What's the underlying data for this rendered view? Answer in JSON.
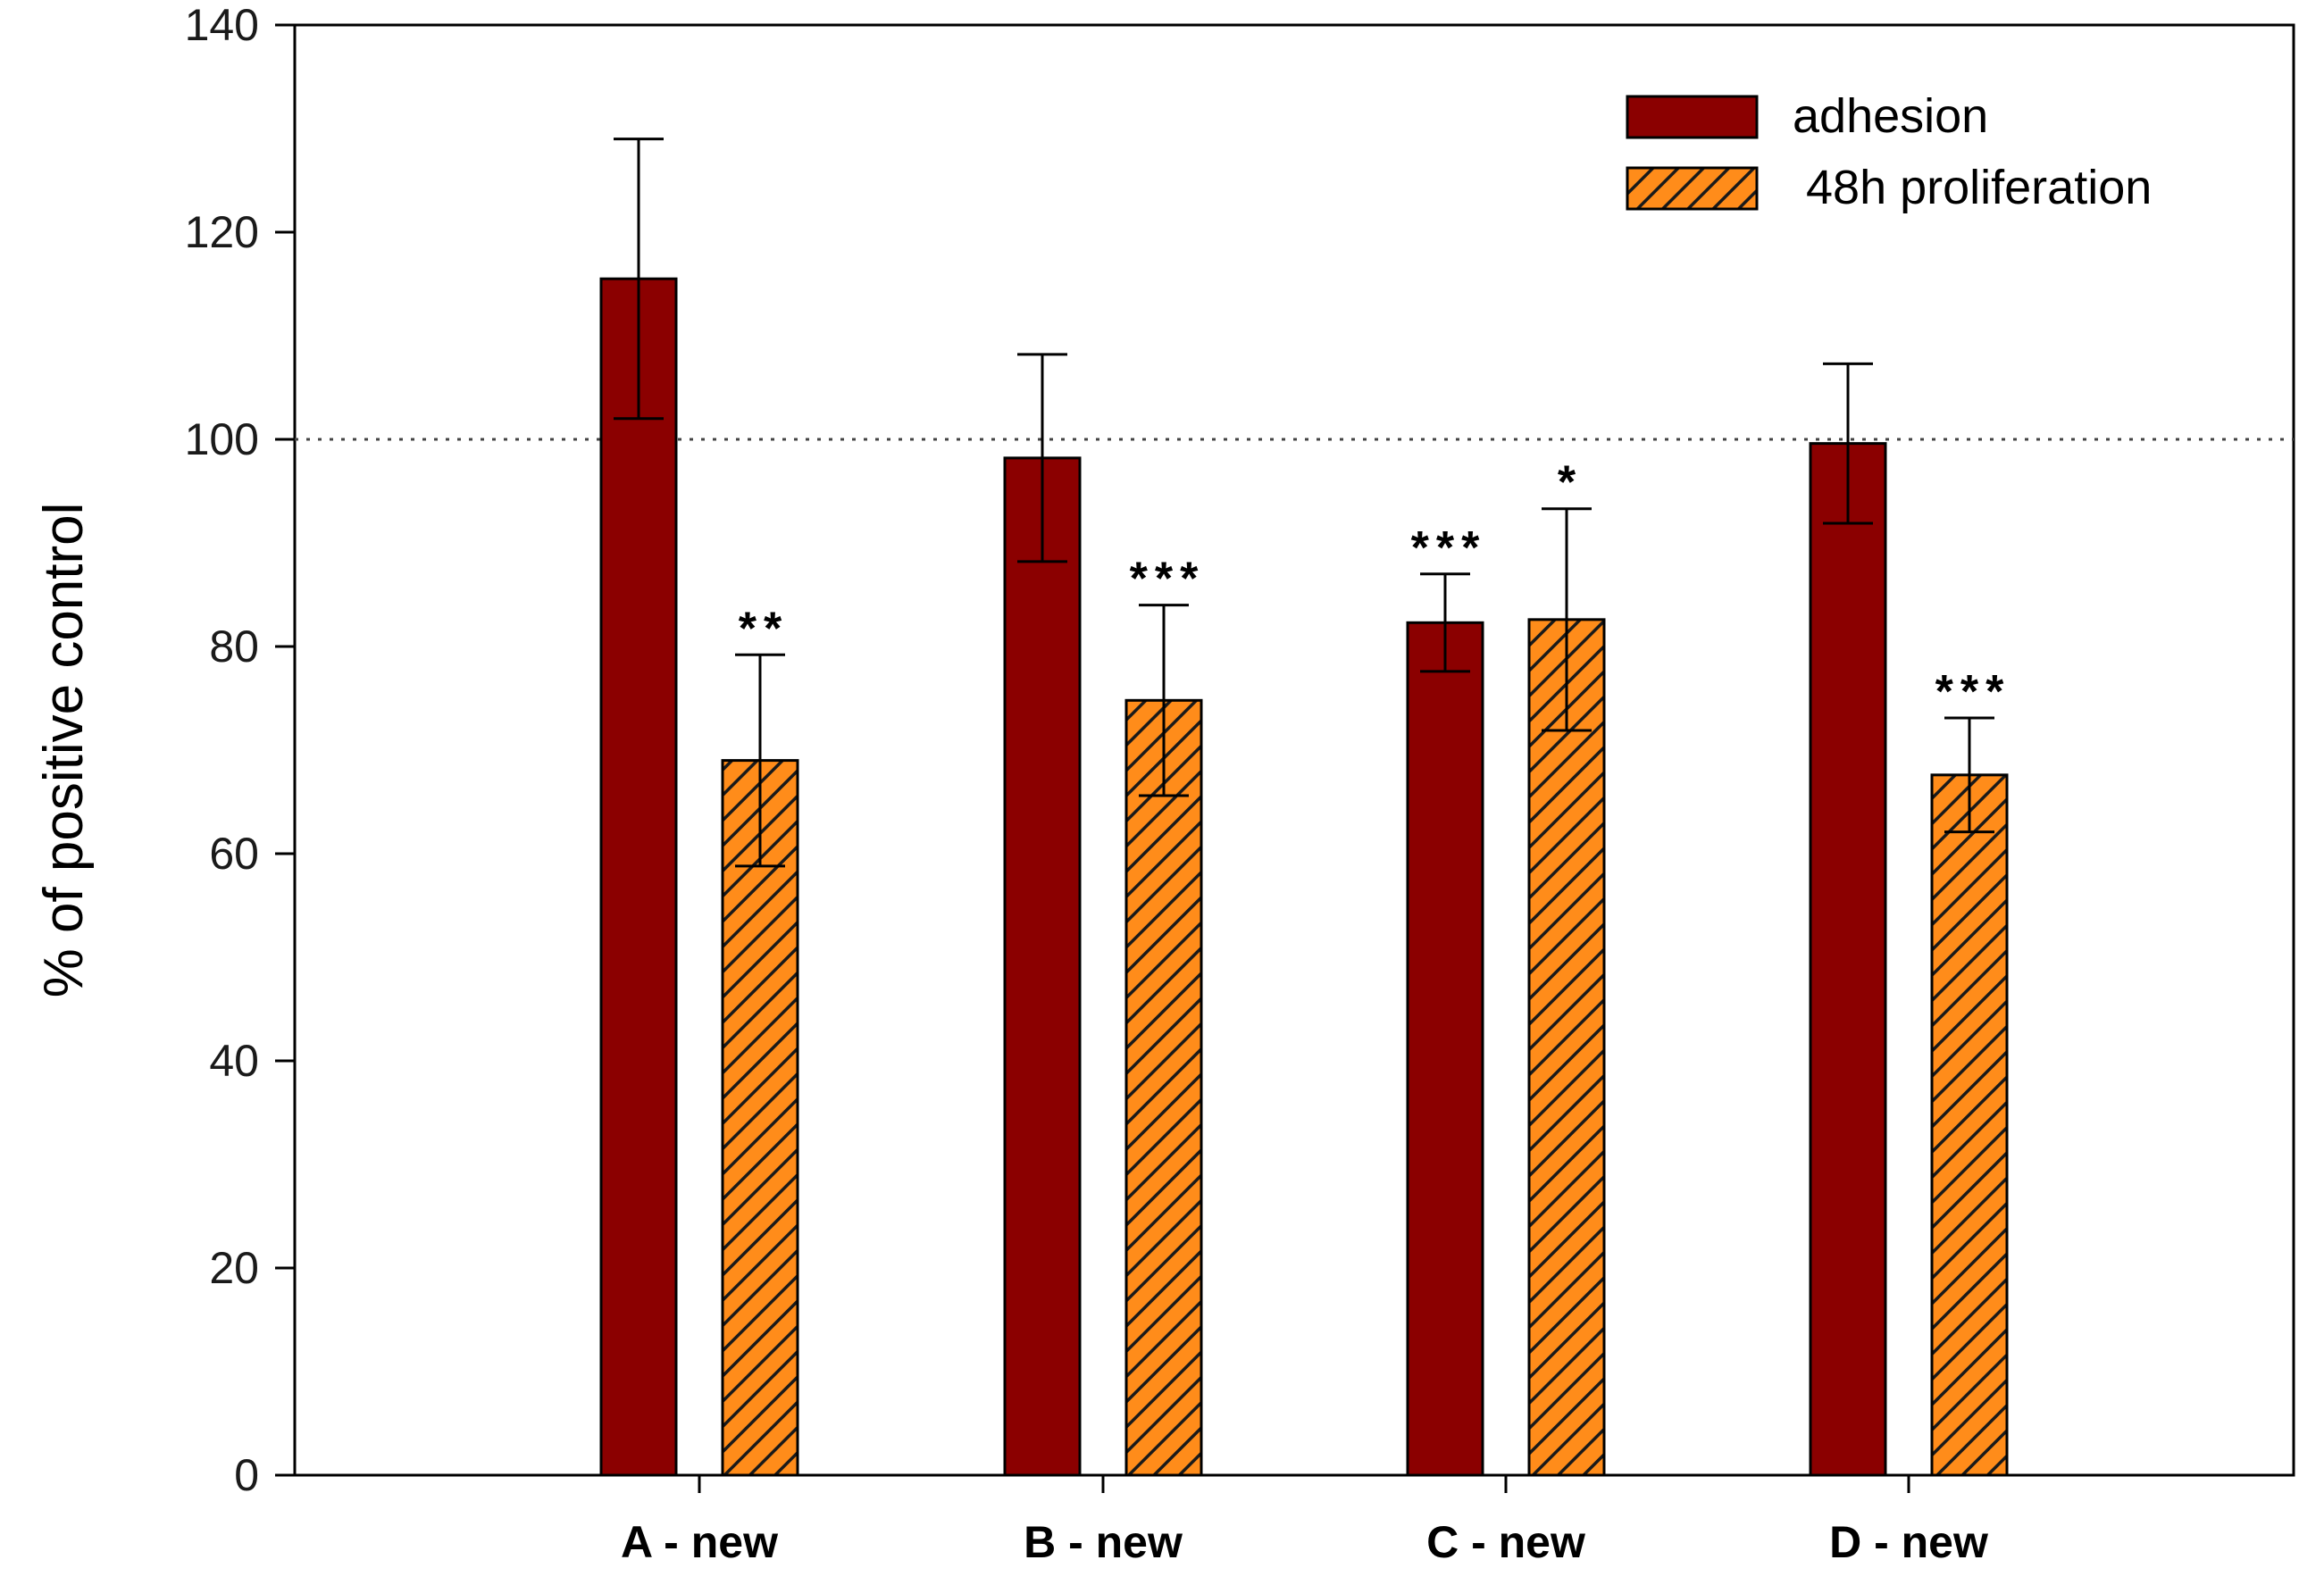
{
  "chart_data": {
    "type": "bar",
    "title": "",
    "xlabel": "",
    "ylabel": "% of positive control",
    "ylim": [
      0,
      140
    ],
    "yticks": [
      0,
      20,
      40,
      60,
      80,
      100,
      120,
      140
    ],
    "reference_line": 100,
    "categories": [
      "A - new",
      "B - new",
      "C - new",
      "D - new"
    ],
    "series": [
      {
        "name": "adhesion",
        "color": "#8b0000",
        "pattern": "solid",
        "values": [
          115.5,
          98.2,
          82.3,
          99.6
        ],
        "errors": [
          13.5,
          10.0,
          4.7,
          7.7
        ],
        "significance": [
          "",
          "",
          "***",
          ""
        ]
      },
      {
        "name": " 48h proliferation",
        "color": "#ff8c1a",
        "pattern": "hatched",
        "values": [
          69.0,
          74.8,
          82.6,
          67.6
        ],
        "errors": [
          10.2,
          9.2,
          10.7,
          5.5
        ],
        "significance": [
          "**",
          "***",
          "*",
          "***"
        ]
      }
    ],
    "legend_position": "top-right"
  }
}
